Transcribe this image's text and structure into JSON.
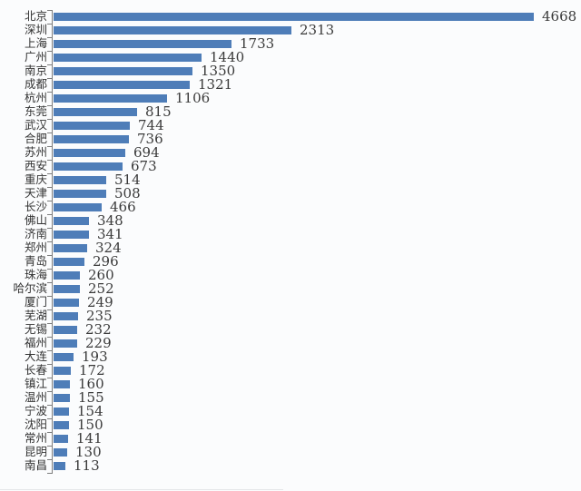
{
  "chart_data": {
    "type": "bar",
    "orientation": "horizontal",
    "title": "",
    "xlabel": "",
    "ylabel": "",
    "xlim": [
      0,
      4668
    ],
    "grid": false,
    "legend": false,
    "value_labels": true,
    "bar_color": "#4e7db8",
    "axis_color": "#7d7d7d",
    "text_color": "#3a3a3a",
    "categories": [
      "北京",
      "深圳",
      "上海",
      "广州",
      "南京",
      "成都",
      "杭州",
      "东莞",
      "武汉",
      "合肥",
      "苏州",
      "西安",
      "重庆",
      "天津",
      "长沙",
      "佛山",
      "济南",
      "郑州",
      "青岛",
      "珠海",
      "哈尔滨",
      "厦门",
      "芜湖",
      "无锡",
      "福州",
      "大连",
      "长春",
      "镇江",
      "温州",
      "宁波",
      "沈阳",
      "常州",
      "昆明",
      "南昌"
    ],
    "values": [
      4668,
      2313,
      1733,
      1440,
      1350,
      1321,
      1106,
      815,
      744,
      736,
      694,
      673,
      514,
      508,
      466,
      348,
      341,
      324,
      296,
      260,
      252,
      249,
      235,
      232,
      229,
      193,
      172,
      160,
      155,
      154,
      150,
      141,
      130,
      113
    ]
  }
}
